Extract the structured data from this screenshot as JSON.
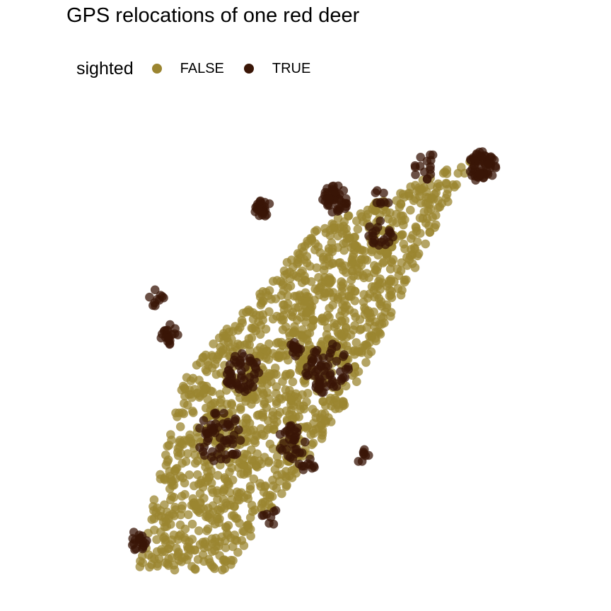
{
  "chart_data": {
    "type": "scatter",
    "title": "GPS relocations of one red deer",
    "xlabel": "",
    "ylabel": "",
    "grid": false,
    "axes_visible": false,
    "legend": {
      "title": "sighted",
      "position": "top",
      "entries": [
        {
          "label": "FALSE",
          "color": "#9b8530",
          "key": "false"
        },
        {
          "label": "TRUE",
          "color": "#3a1607",
          "key": "true"
        }
      ]
    },
    "series": [
      {
        "key": "false",
        "color": "#9b8530",
        "shape": {
          "corners": [
            [
              0.13,
              0.96
            ],
            [
              0.23,
              0.55
            ],
            [
              0.52,
              0.23
            ],
            [
              0.86,
              0.08
            ],
            [
              0.57,
              0.63
            ],
            [
              0.32,
              0.97
            ]
          ],
          "count": 1500,
          "seed": 7
        }
      },
      {
        "key": "true",
        "color": "#3a1607",
        "clusters": [
          {
            "c": [
              0.88,
              0.1
            ],
            "r": 0.03,
            "n": 60
          },
          {
            "c": [
              0.56,
              0.17
            ],
            "r": 0.028,
            "n": 45
          },
          {
            "c": [
              0.4,
              0.19
            ],
            "r": 0.02,
            "n": 25
          },
          {
            "c": [
              0.54,
              0.53
            ],
            "r": 0.05,
            "n": 60
          },
          {
            "c": [
              0.47,
              0.49
            ],
            "r": 0.015,
            "n": 15
          },
          {
            "c": [
              0.36,
              0.54
            ],
            "r": 0.04,
            "n": 50
          },
          {
            "c": [
              0.31,
              0.68
            ],
            "r": 0.05,
            "n": 55
          },
          {
            "c": [
              0.2,
              0.46
            ],
            "r": 0.02,
            "n": 20
          },
          {
            "c": [
              0.17,
              0.38
            ],
            "r": 0.02,
            "n": 10
          },
          {
            "c": [
              0.46,
              0.69
            ],
            "r": 0.035,
            "n": 30
          },
          {
            "c": [
              0.66,
              0.24
            ],
            "r": 0.03,
            "n": 20
          },
          {
            "c": [
              0.76,
              0.1
            ],
            "r": 0.03,
            "n": 15
          },
          {
            "c": [
              0.13,
              0.9
            ],
            "r": 0.02,
            "n": 20
          },
          {
            "c": [
              0.62,
              0.72
            ],
            "r": 0.015,
            "n": 8
          },
          {
            "c": [
              0.5,
              0.74
            ],
            "r": 0.02,
            "n": 10
          },
          {
            "c": [
              0.42,
              0.85
            ],
            "r": 0.02,
            "n": 8
          },
          {
            "c": [
              0.66,
              0.17
            ],
            "r": 0.02,
            "n": 8
          }
        ]
      }
    ]
  }
}
